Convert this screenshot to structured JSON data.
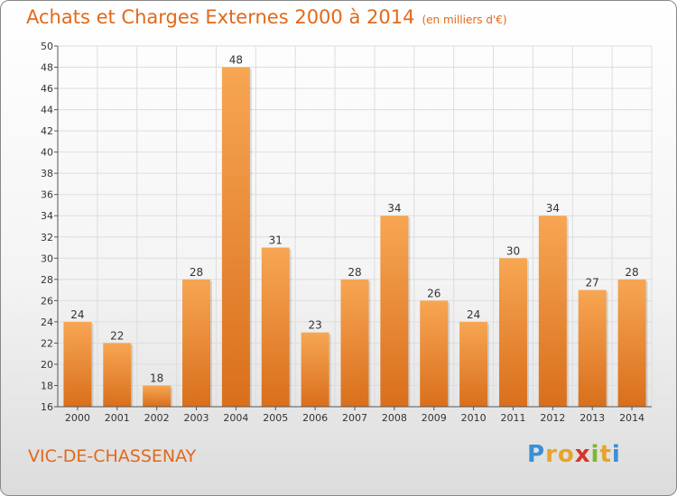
{
  "chart_data": {
    "type": "bar",
    "title": "Achats et Charges Externes 2000 à 2014",
    "subtitle": "(en milliers d'€)",
    "categories": [
      "2000",
      "2001",
      "2002",
      "2003",
      "2004",
      "2005",
      "2006",
      "2007",
      "2008",
      "2009",
      "2010",
      "2011",
      "2012",
      "2013",
      "2014"
    ],
    "values": [
      24,
      22,
      18,
      28,
      48,
      31,
      23,
      28,
      34,
      26,
      24,
      30,
      34,
      27,
      28
    ],
    "ylim": [
      16,
      50
    ],
    "yticks": [
      16,
      18,
      20,
      22,
      24,
      26,
      28,
      30,
      32,
      34,
      36,
      38,
      40,
      42,
      44,
      46,
      48,
      50
    ],
    "grid": true,
    "xlabel": "",
    "ylabel": "",
    "bar_color_top": "#f7a653",
    "bar_color_bottom": "#d96f1c"
  },
  "location": "VIC-DE-CHASSENAY",
  "brand": {
    "letters": [
      "P",
      "r",
      "o",
      "x",
      "i",
      "t",
      "i"
    ],
    "colors": [
      "#3a8fd6",
      "#e8a42a",
      "#e8a42a",
      "#d8342a",
      "#7ab82e",
      "#e8a42a",
      "#3a8fd6"
    ]
  },
  "colors": {
    "accent": "#e2691a",
    "grid": "#dddddd",
    "axis": "#555555"
  }
}
